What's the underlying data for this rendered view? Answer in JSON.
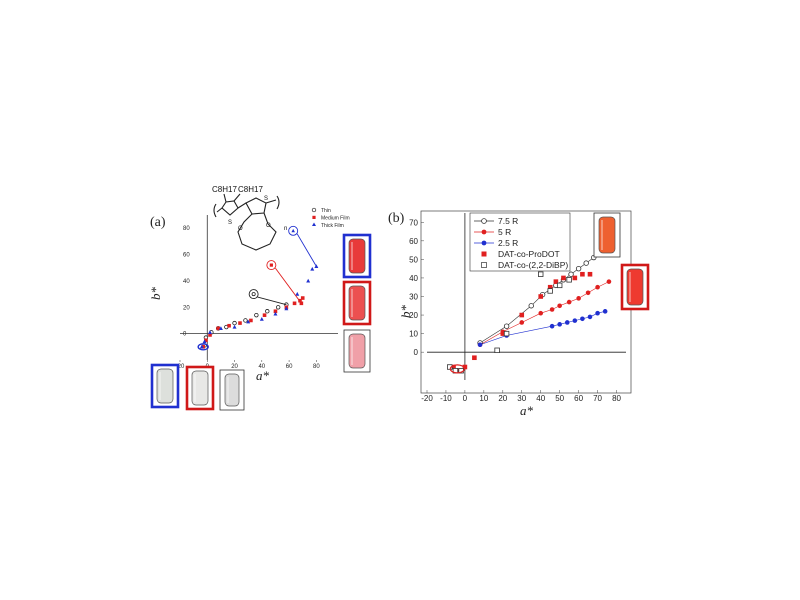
{
  "chart_data": [
    {
      "type": "scatter",
      "panel_label": "(a)",
      "xlabel": "a*",
      "ylabel": "b*",
      "xlim": [
        -20,
        90
      ],
      "ylim": [
        -20,
        90
      ],
      "xticks": [
        "-20",
        "0",
        "20",
        "40",
        "60",
        "80"
      ],
      "yticks": [
        "0",
        "20",
        "40",
        "60",
        "80"
      ],
      "legend_position": "top-right",
      "series": [
        {
          "name": "Thin",
          "marker": "open-circle",
          "color": "#222222",
          "points": [
            [
              -2,
              -9
            ],
            [
              -1,
              -3
            ],
            [
              3,
              1
            ],
            [
              8,
              4
            ],
            [
              14,
              5
            ],
            [
              20,
              8
            ],
            [
              28,
              10
            ],
            [
              36,
              14
            ],
            [
              44,
              17
            ],
            [
              52,
              20
            ],
            [
              58,
              22
            ]
          ]
        },
        {
          "name": "Medium Film",
          "marker": "square",
          "color": "#e02020",
          "points": [
            [
              -3,
              -10
            ],
            [
              -1,
              -5
            ],
            [
              2,
              -1
            ],
            [
              8,
              4
            ],
            [
              16,
              6
            ],
            [
              24,
              8
            ],
            [
              32,
              10
            ],
            [
              42,
              14
            ],
            [
              50,
              17
            ],
            [
              58,
              20
            ],
            [
              64,
              23
            ],
            [
              68,
              25
            ],
            [
              70,
              27
            ],
            [
              69,
              23
            ]
          ]
        },
        {
          "name": "Thick Film",
          "marker": "triangle",
          "color": "#2030d0",
          "points": [
            [
              -4,
              -10
            ],
            [
              -2,
              -6
            ],
            [
              2,
              1
            ],
            [
              10,
              4
            ],
            [
              20,
              5
            ],
            [
              30,
              9
            ],
            [
              40,
              11
            ],
            [
              50,
              15
            ],
            [
              58,
              19
            ],
            [
              66,
              30
            ],
            [
              74,
              40
            ],
            [
              77,
              49
            ],
            [
              80,
              51
            ]
          ]
        }
      ],
      "annotations": [
        {
          "label": "c",
          "series": "Thin",
          "color": "#222222",
          "at": [
            34,
            30
          ]
        },
        {
          "label": "m",
          "series": "Medium Film",
          "color": "#e02020",
          "at": [
            47,
            52
          ]
        },
        {
          "label": "t",
          "series": "Thick Film",
          "color": "#2030d0",
          "at": [
            63,
            78
          ]
        }
      ],
      "structure": {
        "sub1": "C8H17",
        "sub2": "C8H17",
        "atom_s1": "S",
        "atom_s2": "S",
        "atom_o": "O",
        "end_n": "n"
      }
    },
    {
      "type": "scatter",
      "panel_label": "(b)",
      "xlabel": "a*",
      "ylabel": "b*",
      "xlim": [
        -20,
        85
      ],
      "ylim": [
        -15,
        75
      ],
      "xticks": [
        "-20",
        "-10",
        "0",
        "10",
        "20",
        "30",
        "40",
        "50",
        "60",
        "70",
        "80"
      ],
      "yticks": [
        "0",
        "10",
        "20",
        "30",
        "40",
        "50",
        "60",
        "70"
      ],
      "legend_position": "top-left",
      "series": [
        {
          "name": "7.5 R",
          "marker": "open-circle-line",
          "color": "#333333",
          "points": [
            [
              8,
              5
            ],
            [
              22,
              14
            ],
            [
              35,
              25
            ],
            [
              41,
              31
            ],
            [
              48,
              36
            ],
            [
              52,
              39
            ],
            [
              56,
              42
            ],
            [
              60,
              45
            ],
            [
              64,
              48
            ],
            [
              68,
              51
            ],
            [
              72,
              55
            ]
          ]
        },
        {
          "name": "5 R",
          "marker": "circle-line",
          "color": "#e02020",
          "points": [
            [
              8,
              4
            ],
            [
              20,
              11
            ],
            [
              30,
              16
            ],
            [
              40,
              21
            ],
            [
              46,
              23
            ],
            [
              50,
              25
            ],
            [
              55,
              27
            ],
            [
              60,
              29
            ],
            [
              65,
              32
            ],
            [
              70,
              35
            ],
            [
              76,
              38
            ]
          ]
        },
        {
          "name": "2.5 R",
          "marker": "circle-line",
          "color": "#2030d0",
          "points": [
            [
              8,
              4
            ],
            [
              22,
              9
            ],
            [
              46,
              14
            ],
            [
              50,
              15
            ],
            [
              54,
              16
            ],
            [
              58,
              17
            ],
            [
              62,
              18
            ],
            [
              66,
              19
            ],
            [
              70,
              21
            ],
            [
              74,
              22
            ]
          ]
        },
        {
          "name": "DAT-co-ProDOT",
          "marker": "square",
          "color": "#e02020",
          "points": [
            [
              -6,
              -8
            ],
            [
              -3,
              -10
            ],
            [
              0,
              -8
            ],
            [
              5,
              -3
            ],
            [
              20,
              10
            ],
            [
              30,
              20
            ],
            [
              40,
              30
            ],
            [
              45,
              35
            ],
            [
              48,
              38
            ],
            [
              52,
              40
            ],
            [
              58,
              40
            ],
            [
              62,
              42
            ],
            [
              66,
              42
            ]
          ]
        },
        {
          "name": "DAT-co-(2,2-DiBP)",
          "marker": "open-square",
          "color": "#333333",
          "points": [
            [
              -8,
              -8
            ],
            [
              -5,
              -10
            ],
            [
              -2,
              -10
            ],
            [
              17,
              1
            ],
            [
              22,
              10
            ],
            [
              40,
              42
            ],
            [
              45,
              33
            ],
            [
              50,
              36
            ],
            [
              55,
              39
            ]
          ]
        }
      ]
    }
  ],
  "swatches": [
    {
      "id": "a-thick-colored",
      "fill": "#e83a3a",
      "frame": "#2030d0"
    },
    {
      "id": "a-medium-colored",
      "fill": "#ec5050",
      "frame": "#d01818"
    },
    {
      "id": "a-thin-colored",
      "fill": "#f0a0a8",
      "frame": "#333333"
    },
    {
      "id": "a-thick-bleached",
      "fill": "#dde0dc",
      "frame": "#2030d0"
    },
    {
      "id": "a-medium-bleached",
      "fill": "#e8e8e6",
      "frame": "#d01818"
    },
    {
      "id": "a-thin-bleached",
      "fill": "#dcdcdc",
      "frame": "#333333"
    },
    {
      "id": "b-orange",
      "fill": "#ee6030",
      "frame": "#333333"
    },
    {
      "id": "b-red",
      "fill": "#ee3a30",
      "frame": "#d01818"
    }
  ]
}
